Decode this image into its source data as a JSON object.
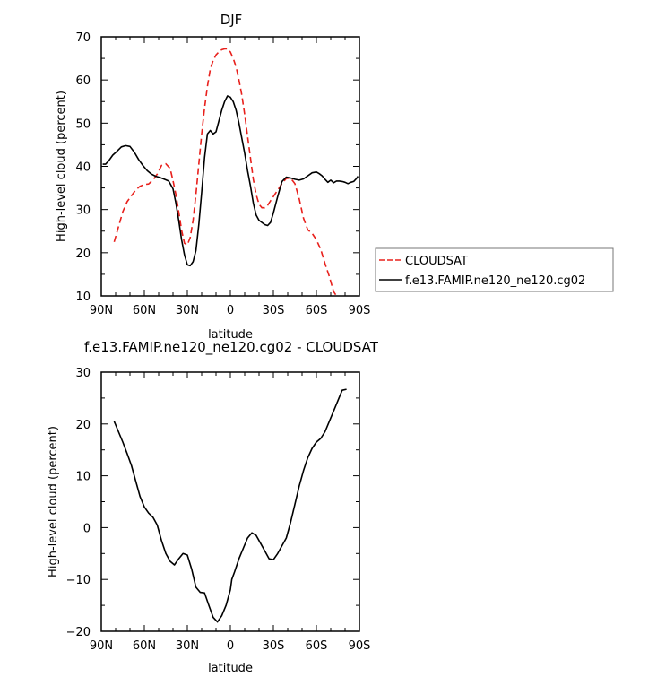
{
  "colors": {
    "cloudsat": "#e8201c",
    "model": "#000000",
    "axis": "#000000"
  },
  "chart_data": [
    {
      "type": "line",
      "title": "DJF",
      "xlabel": "latitude",
      "ylabel": "High-level cloud (percent)",
      "xlim": [
        90,
        -90
      ],
      "ylim": [
        10,
        70
      ],
      "xticks": [
        90,
        60,
        30,
        0,
        -30,
        -60,
        -90
      ],
      "xticklabels": [
        "90N",
        "60N",
        "30N",
        "0",
        "30S",
        "60S",
        "90S"
      ],
      "yticks": [
        10,
        20,
        30,
        40,
        50,
        60,
        70
      ],
      "yticklabels": [
        "10",
        "20",
        "30",
        "40",
        "50",
        "60",
        "70"
      ],
      "legend": {
        "placement": "right"
      },
      "series": [
        {
          "name": "CLOUDSAT",
          "color": "#e8201c",
          "dash": "dashed",
          "x": [
            81,
            78,
            75,
            72,
            69,
            66,
            63,
            60,
            57,
            54,
            51,
            48,
            45,
            42,
            40,
            38,
            36,
            34,
            32,
            30,
            28,
            26,
            24,
            22,
            20,
            18,
            16,
            14,
            12,
            10,
            8,
            6,
            4,
            2,
            0,
            -2,
            -4,
            -6,
            -8,
            -10,
            -12,
            -14,
            -16,
            -18,
            -20,
            -22,
            -24,
            -26,
            -28,
            -30,
            -33,
            -36,
            -39,
            -42,
            -45,
            -48,
            -51,
            -54,
            -57,
            -60,
            -63,
            -66,
            -69,
            -72,
            -75,
            -78,
            -81
          ],
          "y": [
            22.5,
            26,
            29.5,
            31.8,
            33.2,
            34.5,
            35.4,
            35.8,
            35.9,
            36.8,
            38.2,
            40.2,
            40.6,
            39.5,
            36.7,
            33.5,
            29.5,
            25.2,
            22.2,
            21.8,
            23.5,
            27.5,
            33.5,
            40.5,
            47.5,
            53.5,
            58.5,
            62.5,
            64.5,
            65.8,
            66.5,
            67.0,
            67.2,
            67.2,
            66.5,
            65.0,
            63.0,
            60.0,
            56.5,
            52.0,
            47.0,
            42.0,
            37.0,
            33.5,
            31.2,
            30.4,
            30.4,
            31.0,
            32.0,
            33.0,
            34.5,
            36.0,
            37.2,
            37.3,
            36.0,
            32.5,
            28.0,
            25.3,
            24.5,
            23.0,
            20.8,
            17.5,
            14.5,
            11.0,
            9.5,
            9.5,
            9.5
          ]
        },
        {
          "name": "f.e13.FAMIP.ne120_ne120.cg02",
          "color": "#000000",
          "dash": "solid",
          "x": [
            89,
            87,
            85,
            82,
            79,
            76,
            73,
            70,
            67,
            64,
            61,
            58,
            55,
            52,
            49,
            46,
            43,
            40,
            38,
            36,
            34,
            32,
            30,
            28,
            26,
            24,
            22,
            20,
            18,
            16,
            14,
            12,
            10,
            8,
            6,
            4,
            2,
            0,
            -2,
            -4,
            -6,
            -8,
            -10,
            -12,
            -14,
            -16,
            -18,
            -20,
            -22,
            -24,
            -26,
            -28,
            -30,
            -33,
            -36,
            -39,
            -42,
            -45,
            -48,
            -51,
            -54,
            -57,
            -60,
            -62,
            -64,
            -66,
            -68,
            -70,
            -72,
            -74,
            -76,
            -78,
            -80,
            -82,
            -84,
            -86,
            -88,
            -89
          ],
          "y": [
            40.5,
            40.5,
            41.2,
            42.6,
            43.5,
            44.5,
            44.8,
            44.6,
            43.3,
            41.6,
            40.2,
            39.0,
            38.2,
            37.7,
            37.4,
            37.0,
            36.6,
            34.8,
            31.5,
            27.5,
            23.0,
            19.5,
            17.2,
            17.0,
            17.9,
            20.5,
            26.5,
            34.0,
            42.0,
            47.5,
            48.3,
            47.5,
            48.0,
            50.5,
            53.0,
            55.0,
            56.3,
            56.0,
            55.0,
            53.0,
            50.0,
            46.5,
            43.0,
            39.0,
            35.5,
            31.5,
            28.7,
            27.5,
            27.0,
            26.5,
            26.3,
            27.0,
            29.2,
            33.0,
            36.5,
            37.5,
            37.3,
            37.0,
            36.8,
            37.1,
            37.8,
            38.5,
            38.7,
            38.3,
            37.8,
            37.0,
            36.3,
            36.8,
            36.2,
            36.6,
            36.6,
            36.5,
            36.3,
            36.0,
            36.3,
            36.5,
            37.2,
            37.7
          ]
        }
      ]
    },
    {
      "type": "line",
      "title": "f.e13.FAMIP.ne120_ne120.cg02 - CLOUDSAT",
      "xlabel": "latitude",
      "ylabel": "High-level cloud (percent)",
      "xlim": [
        90,
        -90
      ],
      "ylim": [
        -20,
        30
      ],
      "xticks": [
        90,
        60,
        30,
        0,
        -30,
        -60,
        -90
      ],
      "xticklabels": [
        "90N",
        "60N",
        "30N",
        "0",
        "30S",
        "60S",
        "90S"
      ],
      "yticks": [
        -20,
        -10,
        0,
        10,
        20,
        30
      ],
      "yticklabels": [
        "−20",
        "−10",
        "0",
        "10",
        "20",
        "30"
      ],
      "series": [
        {
          "color": "#000000",
          "dash": "solid",
          "x": [
            81,
            78,
            75,
            72,
            69,
            66,
            63,
            60,
            57,
            54,
            51,
            48,
            45,
            42,
            39,
            36,
            33,
            30,
            27,
            24,
            21,
            18,
            15,
            12,
            9,
            6,
            3,
            1,
            0,
            -1,
            -3,
            -6,
            -9,
            -12,
            -15,
            -18,
            -21,
            -24,
            -27,
            -30,
            -33,
            -36,
            -39,
            -42,
            -45,
            -48,
            -51,
            -54,
            -57,
            -60,
            -63,
            -66,
            -69,
            -72,
            -75,
            -78,
            -81
          ],
          "y": [
            20.5,
            18.5,
            16.5,
            14.3,
            12.0,
            9.0,
            6.0,
            4.0,
            2.8,
            2.0,
            0.5,
            -2.5,
            -5.0,
            -6.5,
            -7.2,
            -6.0,
            -5.0,
            -5.3,
            -8.0,
            -11.5,
            -12.5,
            -12.6,
            -15.0,
            -17.3,
            -18.2,
            -17.0,
            -15.0,
            -13.0,
            -12.0,
            -10.0,
            -8.5,
            -6.0,
            -4.0,
            -2.0,
            -1.0,
            -1.5,
            -3.0,
            -4.5,
            -6.0,
            -6.2,
            -5.0,
            -3.5,
            -2.0,
            1.0,
            4.5,
            8.0,
            11.0,
            13.5,
            15.3,
            16.5,
            17.2,
            18.5,
            20.5,
            22.5,
            24.5,
            26.5,
            26.7
          ]
        }
      ]
    }
  ]
}
